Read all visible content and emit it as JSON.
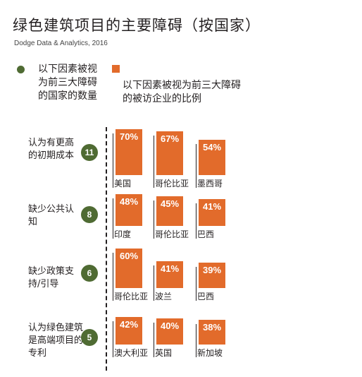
{
  "title": "绿色建筑项目的主要障碍（按国家）",
  "source": "Dodge Data & Analytics, 2016",
  "legend": {
    "count_label": "以下因素被视为前三大障碍的国家的数量",
    "percent_label": "以下因素被视为前三大障碍的被访企业的比例"
  },
  "colors": {
    "bar": "#e26b2b",
    "circle": "#4f6b33"
  },
  "chart_data": {
    "type": "bar",
    "title": "绿色建筑项目的主要障碍（按国家）",
    "unit": "%",
    "groups": [
      {
        "barrier": "认为有更高的初期成本",
        "count": "11",
        "bars": [
          {
            "country": "美国",
            "value": 70,
            "label": "70%"
          },
          {
            "country": "哥伦比亚",
            "value": 67,
            "label": "67%"
          },
          {
            "country": "墨西哥",
            "value": 54,
            "label": "54%"
          }
        ]
      },
      {
        "barrier": "缺少公共认知",
        "count": "8",
        "bars": [
          {
            "country": "印度",
            "value": 48,
            "label": "48%"
          },
          {
            "country": "哥伦比亚",
            "value": 45,
            "label": "45%"
          },
          {
            "country": "巴西",
            "value": 41,
            "label": "41%"
          }
        ]
      },
      {
        "barrier": "缺少政策支持/引导",
        "count": "6",
        "bars": [
          {
            "country": "哥伦比亚",
            "value": 60,
            "label": "60%"
          },
          {
            "country": "波兰",
            "value": 41,
            "label": "41%"
          },
          {
            "country": "巴西",
            "value": 39,
            "label": "39%"
          }
        ]
      },
      {
        "barrier": "认为绿色建筑是高端项目的专利",
        "count": "5",
        "bars": [
          {
            "country": "澳大利亚",
            "value": 42,
            "label": "42%"
          },
          {
            "country": "英国",
            "value": 40,
            "label": "40%"
          },
          {
            "country": "新加坡",
            "value": 38,
            "label": "38%"
          }
        ]
      }
    ]
  }
}
